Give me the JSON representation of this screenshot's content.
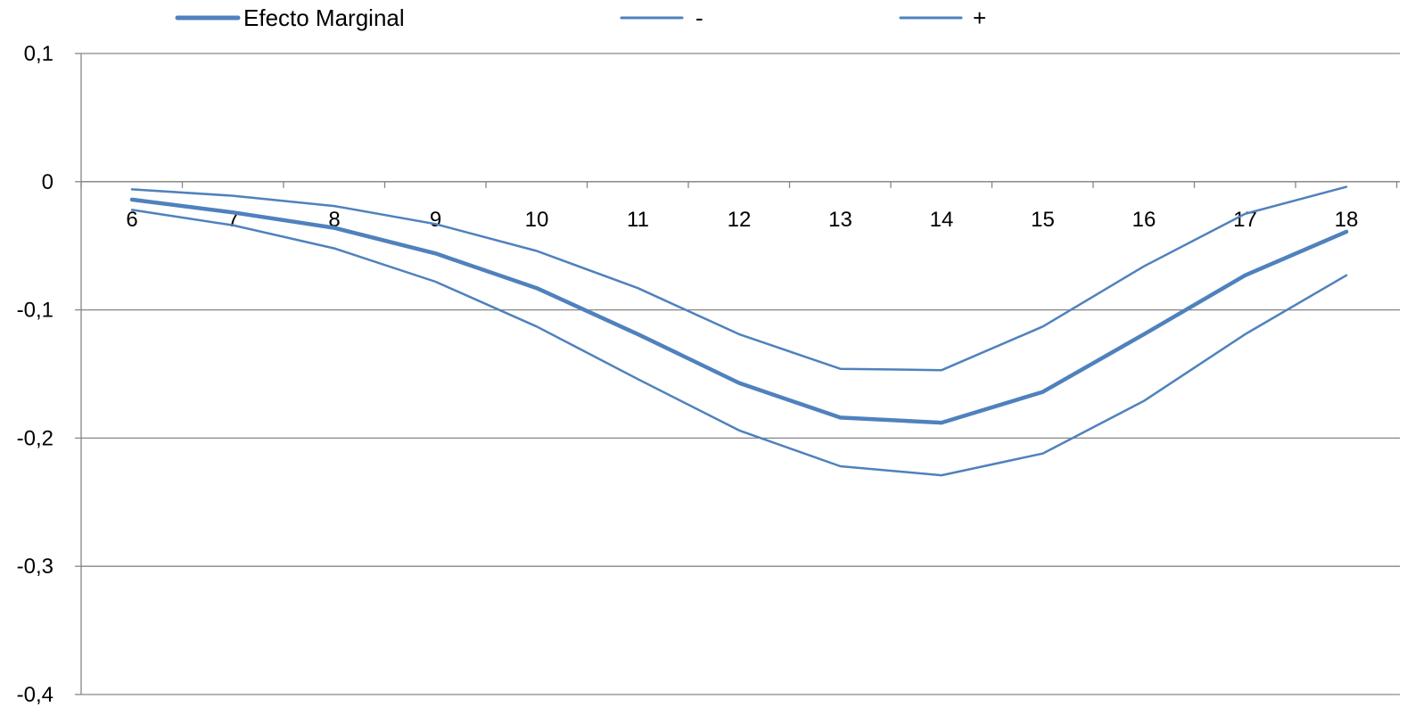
{
  "chart_data": {
    "type": "line",
    "title": "",
    "xlabel": "",
    "ylabel": "",
    "categories": [
      "6",
      "7",
      "8",
      "9",
      "10",
      "11",
      "12",
      "13",
      "14",
      "15",
      "16",
      "17",
      "18"
    ],
    "y_tick_labels": [
      "0,1",
      "0",
      "-0,1",
      "-0,2",
      "-0,3",
      "-0,4"
    ],
    "y_ticks": [
      0.1,
      0,
      -0.1,
      -0.2,
      -0.3,
      -0.4
    ],
    "ylim": [
      -0.4,
      0.1
    ],
    "grid": true,
    "legend_position": "top",
    "series": [
      {
        "name": "Efecto Marginal",
        "color": "#4F81BD",
        "emphasis": "thick",
        "values": [
          -0.014,
          -0.024,
          -0.036,
          -0.056,
          -0.083,
          -0.119,
          -0.157,
          -0.184,
          -0.188,
          -0.164,
          -0.119,
          -0.073,
          -0.039
        ]
      },
      {
        "name": "-",
        "color": "#4F81BD",
        "emphasis": "thin",
        "values": [
          -0.022,
          -0.034,
          -0.052,
          -0.078,
          -0.113,
          -0.154,
          -0.194,
          -0.222,
          -0.229,
          -0.212,
          -0.171,
          -0.119,
          -0.073
        ]
      },
      {
        "name": "+",
        "color": "#4F81BD",
        "emphasis": "thin",
        "values": [
          -0.006,
          -0.011,
          -0.019,
          -0.033,
          -0.054,
          -0.083,
          -0.119,
          -0.146,
          -0.147,
          -0.113,
          -0.066,
          -0.025,
          -0.004
        ]
      }
    ]
  }
}
